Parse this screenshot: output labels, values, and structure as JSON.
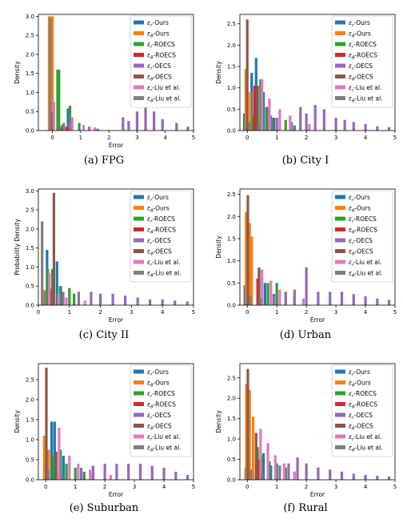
{
  "colors": [
    "#1f77b4",
    "#ff7f0e",
    "#2ca02c",
    "#d62728",
    "#9467bd",
    "#8c564b",
    "#e377c2",
    "#7f7f7f"
  ],
  "chart_data": [
    {
      "type": "bar",
      "caption": "(a) FPG",
      "xlabel": "Error",
      "ylabel": "Density",
      "xlim": [
        -0.5,
        5.0
      ],
      "ylim": [
        0,
        3.05
      ],
      "xticks": [
        0,
        1,
        2,
        3,
        4,
        5
      ],
      "yticks": [
        0.0,
        0.5,
        1.0,
        1.5,
        2.0,
        2.5,
        3.0
      ],
      "ytick_labels": [
        "0.0",
        "0.5",
        "1.0",
        "1.5",
        "2.0",
        "2.5",
        "3.0"
      ],
      "legend_position": "top-right",
      "series": [
        {
          "name_base": "ε",
          "name_sub": "r",
          "name_text": "-Ours",
          "x": [
            -0.1,
            0.55
          ],
          "values": [
            0.85,
            0.58
          ]
        },
        {
          "name_base": "ε",
          "name_sub": "θ",
          "name_text": "-Ours",
          "x": [
            -0.12,
            -0.05,
            0.0
          ],
          "values": [
            3.0,
            3.0,
            3.0
          ]
        },
        {
          "name_base": "ε",
          "name_sub": "r",
          "name_text": "-ROECS",
          "x": [
            0.18,
            0.23,
            0.62,
            0.95
          ],
          "values": [
            1.6,
            1.6,
            0.65,
            0.2
          ]
        },
        {
          "name_base": "ε",
          "name_sub": "θ",
          "name_text": "-ROECS",
          "x": [
            -0.05,
            0.5
          ],
          "values": [
            0.5,
            0.1
          ]
        },
        {
          "name_base": "ε",
          "name_sub": "r",
          "name_text": "-OECS",
          "x": [
            0.3,
            0.6,
            1.3,
            1.6,
            2.5,
            2.7,
            3.0,
            3.3,
            3.6,
            3.9,
            4.4,
            4.8
          ],
          "values": [
            0.1,
            0.2,
            0.1,
            0.05,
            0.35,
            0.25,
            0.5,
            0.6,
            0.5,
            0.3,
            0.2,
            0.1
          ]
        },
        {
          "name_base": "ε",
          "name_sub": "θ",
          "name_text": "-OECS",
          "x": [
            -0.03,
            0.35
          ],
          "values": [
            0.45,
            0.15
          ]
        },
        {
          "name_base": "ε",
          "name_sub": "r",
          "name_text": "-Liu et al.",
          "x": [
            0.05,
            0.7,
            1.1,
            1.5
          ],
          "values": [
            0.75,
            0.35,
            0.15,
            0.08
          ]
        },
        {
          "name_base": "ε",
          "name_sub": "θ",
          "name_text": "-Liu et al.",
          "x": [
            -0.08,
            0.4
          ],
          "values": [
            2.95,
            0.2
          ]
        }
      ]
    },
    {
      "type": "bar",
      "caption": "(b) City I",
      "xlabel": "",
      "ylabel": "Density",
      "xlim": [
        -0.25,
        5.0
      ],
      "ylim": [
        0,
        2.72
      ],
      "xticks": [
        0,
        1,
        2,
        3,
        4,
        5
      ],
      "yticks": [
        0.0,
        0.5,
        1.0,
        1.5,
        2.0,
        2.5
      ],
      "ytick_labels": [
        "0.0",
        "0.5",
        "1.0",
        "1.5",
        "2.0",
        "2.5"
      ],
      "legend_position": "top-right",
      "series": [
        {
          "name_base": "ε",
          "name_sub": "r",
          "name_text": "-Ours",
          "x": [
            -0.1,
            0.15,
            0.3,
            0.55,
            0.7,
            0.9
          ],
          "values": [
            0.4,
            1.35,
            1.7,
            0.9,
            0.55,
            0.3
          ]
        },
        {
          "name_base": "ε",
          "name_sub": "θ",
          "name_text": "-Ours",
          "x": [
            -0.05,
            0.1
          ],
          "values": [
            1.45,
            0.9
          ]
        },
        {
          "name_base": "ε",
          "name_sub": "r",
          "name_text": "-ROECS",
          "x": [
            0.2,
            0.45,
            0.65,
            0.85,
            1.3,
            1.6
          ],
          "values": [
            0.35,
            1.2,
            0.55,
            0.3,
            0.25,
            0.12
          ]
        },
        {
          "name_base": "ε",
          "name_sub": "θ",
          "name_text": "-ROECS",
          "x": [
            0.25,
            0.75
          ],
          "values": [
            1.05,
            0.2
          ]
        },
        {
          "name_base": "ε",
          "name_sub": "r",
          "name_text": "-OECS",
          "x": [
            0.8,
            1.0,
            1.5,
            1.8,
            2.0,
            2.3,
            2.6,
            3.0,
            3.3,
            3.6,
            4.0,
            4.4,
            4.8
          ],
          "values": [
            0.35,
            0.3,
            0.2,
            0.55,
            0.4,
            0.6,
            0.5,
            0.3,
            0.25,
            0.2,
            0.15,
            0.1,
            0.08
          ]
        },
        {
          "name_base": "ε",
          "name_sub": "θ",
          "name_text": "-OECS",
          "x": [
            0.0,
            0.35
          ],
          "values": [
            2.6,
            1.05
          ]
        },
        {
          "name_base": "ε",
          "name_sub": "r",
          "name_text": "-Liu et al.",
          "x": [
            0.5,
            0.75,
            1.1,
            1.45,
            2.1
          ],
          "values": [
            1.2,
            0.75,
            0.5,
            0.35,
            0.15
          ]
        },
        {
          "name_base": "ε",
          "name_sub": "θ",
          "name_text": "-Liu et al.",
          "x": [
            0.08,
            0.4
          ],
          "values": [
            0.2,
            0.12
          ]
        }
      ]
    },
    {
      "type": "bar",
      "caption": "(c) City II",
      "xlabel": "Error",
      "ylabel": "Probability Density",
      "xlim": [
        0.0,
        5.0
      ],
      "ylim": [
        0,
        3.05
      ],
      "xticks": [
        0,
        1,
        2,
        3,
        4,
        5
      ],
      "yticks": [
        0.0,
        0.5,
        1.0,
        1.5,
        2.0,
        2.5,
        3.0
      ],
      "ytick_labels": [
        "0.0",
        "0.5",
        "1.0",
        "1.5",
        "2.0",
        "2.5",
        "3.0"
      ],
      "legend_position": "top-right",
      "series": [
        {
          "name_base": "ε",
          "name_sub": "r",
          "name_text": "-Ours",
          "x": [
            0.28,
            0.6,
            0.72
          ],
          "values": [
            1.45,
            1.15,
            0.5
          ]
        },
        {
          "name_base": "ε",
          "name_sub": "θ",
          "name_text": "-Ours",
          "x": [
            0.2,
            0.4
          ],
          "values": [
            0.4,
            0.45
          ]
        },
        {
          "name_base": "ε",
          "name_sub": "r",
          "name_text": "-ROECS",
          "x": [
            0.3,
            0.45,
            0.7,
            1.0,
            1.15
          ],
          "values": [
            0.95,
            0.95,
            0.5,
            0.45,
            0.3
          ]
        },
        {
          "name_base": "ε",
          "name_sub": "θ",
          "name_text": "-ROECS",
          "x": [
            0.38
          ],
          "values": [
            0.4
          ]
        },
        {
          "name_base": "ε",
          "name_sub": "r",
          "name_text": "-OECS",
          "x": [
            0.8,
            1.3,
            1.7,
            2.0,
            2.4,
            2.8,
            3.2,
            3.6,
            4.0,
            4.4,
            4.8
          ],
          "values": [
            0.35,
            0.35,
            0.35,
            0.3,
            0.3,
            0.25,
            0.2,
            0.15,
            0.15,
            0.12,
            0.1
          ]
        },
        {
          "name_base": "ε",
          "name_sub": "θ",
          "name_text": "-OECS",
          "x": [
            0.5
          ],
          "values": [
            2.95
          ]
        },
        {
          "name_base": "ε",
          "name_sub": "r",
          "name_text": "-Liu et al.",
          "x": [
            0.35,
            0.65,
            0.9,
            1.5
          ],
          "values": [
            0.85,
            0.3,
            0.2,
            0.12
          ]
        },
        {
          "name_base": "ε",
          "name_sub": "θ",
          "name_text": "-Liu et al.",
          "x": [
            0.12,
            0.22
          ],
          "values": [
            2.2,
            0.35
          ]
        }
      ]
    },
    {
      "type": "bar",
      "caption": "(d) Urban",
      "xlabel": "Error",
      "ylabel": "Density",
      "xlim": [
        -0.25,
        5.0
      ],
      "ylim": [
        0,
        2.62
      ],
      "xticks": [
        0,
        1,
        2,
        3,
        4,
        5
      ],
      "yticks": [
        0.0,
        0.5,
        1.0,
        1.5,
        2.0,
        2.5
      ],
      "ytick_labels": [
        "0.0",
        "0.5",
        "1.0",
        "1.5",
        "2.0",
        "2.5"
      ],
      "legend_position": "top-right",
      "series": [
        {
          "name_base": "ε",
          "name_sub": "r",
          "name_text": "-Ours",
          "x": [
            -0.08,
            0.05,
            0.6,
            0.9
          ],
          "values": [
            0.45,
            0.2,
            0.5,
            0.25
          ]
        },
        {
          "name_base": "ε",
          "name_sub": "θ",
          "name_text": "-Ours",
          "x": [
            -0.04,
            0.08,
            0.15
          ],
          "values": [
            2.1,
            1.85,
            1.55
          ]
        },
        {
          "name_base": "ε",
          "name_sub": "r",
          "name_text": "-ROECS",
          "x": [
            0.4,
            0.7,
            1.0,
            1.3,
            1.6
          ],
          "values": [
            0.85,
            0.5,
            0.5,
            0.3,
            0.2
          ]
        },
        {
          "name_base": "ε",
          "name_sub": "θ",
          "name_text": "-ROECS",
          "x": [
            0.35
          ],
          "values": [
            0.6
          ]
        },
        {
          "name_base": "ε",
          "name_sub": "r",
          "name_text": "-OECS",
          "x": [
            0.9,
            1.3,
            1.6,
            2.0,
            2.4,
            2.8,
            3.2,
            3.6,
            4.0,
            4.4,
            4.8
          ],
          "values": [
            0.2,
            0.3,
            0.35,
            0.85,
            0.3,
            0.3,
            0.3,
            0.25,
            0.2,
            0.15,
            0.12
          ]
        },
        {
          "name_base": "ε",
          "name_sub": "θ",
          "name_text": "-OECS",
          "x": [
            0.02,
            0.4
          ],
          "values": [
            2.48,
            0.85
          ]
        },
        {
          "name_base": "ε",
          "name_sub": "r",
          "name_text": "-Liu et al.",
          "x": [
            0.5,
            0.8,
            1.1,
            1.9
          ],
          "values": [
            0.8,
            0.55,
            0.35,
            0.15
          ]
        },
        {
          "name_base": "ε",
          "name_sub": "θ",
          "name_text": "-Liu et al.",
          "x": [
            0.1,
            0.45
          ],
          "values": [
            0.2,
            0.15
          ]
        }
      ]
    },
    {
      "type": "bar",
      "caption": "(e) Suburban",
      "xlabel": "Error",
      "ylabel": "Density",
      "xlim": [
        -0.25,
        5.0
      ],
      "ylim": [
        0,
        2.9
      ],
      "xticks": [
        0,
        1,
        2,
        3,
        4,
        5
      ],
      "yticks": [
        0.0,
        0.5,
        1.0,
        1.5,
        2.0,
        2.5
      ],
      "ytick_labels": [
        "0.0",
        "0.5",
        "1.0",
        "1.5",
        "2.0",
        "2.5"
      ],
      "legend_position": "top-right",
      "series": [
        {
          "name_base": "ε",
          "name_sub": "r",
          "name_text": "-Ours",
          "x": [
            0.2,
            0.3,
            0.6
          ],
          "values": [
            1.45,
            1.45,
            0.6
          ]
        },
        {
          "name_base": "ε",
          "name_sub": "θ",
          "name_text": "-Ours",
          "x": [
            -0.05,
            0.1
          ],
          "values": [
            1.1,
            0.75
          ]
        },
        {
          "name_base": "ε",
          "name_sub": "r",
          "name_text": "-ROECS",
          "x": [
            0.25,
            0.5,
            0.7,
            1.0,
            1.3,
            1.6
          ],
          "values": [
            0.6,
            0.75,
            0.4,
            0.3,
            0.2,
            0.15
          ]
        },
        {
          "name_base": "ε",
          "name_sub": "θ",
          "name_text": "-ROECS",
          "x": [
            0.45
          ],
          "values": [
            0.25
          ]
        },
        {
          "name_base": "ε",
          "name_sub": "r",
          "name_text": "-OECS",
          "x": [
            1.2,
            1.6,
            2.0,
            2.4,
            2.8,
            3.2,
            3.6,
            4.0,
            4.4,
            4.8
          ],
          "values": [
            0.3,
            0.35,
            0.4,
            0.4,
            0.4,
            0.4,
            0.35,
            0.3,
            0.2,
            0.12
          ]
        },
        {
          "name_base": "ε",
          "name_sub": "θ",
          "name_text": "-OECS",
          "x": [
            0.02,
            0.35
          ],
          "values": [
            2.8,
            0.7
          ]
        },
        {
          "name_base": "ε",
          "name_sub": "r",
          "name_text": "-Liu et al.",
          "x": [
            0.45,
            0.8,
            1.1,
            1.5,
            2.2
          ],
          "values": [
            1.3,
            0.6,
            0.4,
            0.25,
            0.12
          ]
        },
        {
          "name_base": "ε",
          "name_sub": "θ",
          "name_text": "-Liu et al.",
          "x": [
            0.08,
            0.55
          ],
          "values": [
            0.25,
            0.15
          ]
        }
      ]
    },
    {
      "type": "bar",
      "caption": "(f) Rural",
      "xlabel": "Error",
      "ylabel": "Density",
      "xlim": [
        -0.25,
        5.0
      ],
      "ylim": [
        0,
        2.85
      ],
      "xticks": [
        0,
        1,
        2,
        3,
        4,
        5
      ],
      "yticks": [
        0.0,
        0.5,
        1.0,
        1.5,
        2.0,
        2.5
      ],
      "ytick_labels": [
        "0.0",
        "0.5",
        "1.0",
        "1.5",
        "2.0",
        "2.5"
      ],
      "legend_position": "top-right",
      "series": [
        {
          "name_base": "ε",
          "name_sub": "r",
          "name_text": "-Ours",
          "x": [
            -0.05,
            0.55,
            0.8
          ],
          "values": [
            0.3,
            0.65,
            0.35
          ]
        },
        {
          "name_base": "ε",
          "name_sub": "θ",
          "name_text": "-Ours",
          "x": [
            -0.03,
            0.08,
            0.2
          ],
          "values": [
            2.35,
            2.2,
            1.55
          ]
        },
        {
          "name_base": "ε",
          "name_sub": "r",
          "name_text": "-ROECS",
          "x": [
            0.35,
            0.5,
            0.75,
            1.0,
            1.3,
            1.6
          ],
          "values": [
            0.8,
            0.6,
            0.45,
            0.4,
            0.3,
            0.2
          ]
        },
        {
          "name_base": "ε",
          "name_sub": "θ",
          "name_text": "-ROECS",
          "x": [
            0.4
          ],
          "values": [
            0.5
          ]
        },
        {
          "name_base": "ε",
          "name_sub": "r",
          "name_text": "-OECS",
          "x": [
            1.1,
            1.4,
            1.7,
            2.0,
            2.4,
            2.8,
            3.2,
            3.6,
            4.0,
            4.4,
            4.8
          ],
          "values": [
            0.35,
            0.4,
            0.55,
            0.4,
            0.3,
            0.25,
            0.2,
            0.15,
            0.12,
            0.1,
            0.08
          ]
        },
        {
          "name_base": "ε",
          "name_sub": "θ",
          "name_text": "-OECS",
          "x": [
            0.02,
            0.3
          ],
          "values": [
            2.72,
            1.15
          ]
        },
        {
          "name_base": "ε",
          "name_sub": "r",
          "name_text": "-Liu et al.",
          "x": [
            0.45,
            0.7,
            0.95,
            1.25,
            1.6
          ],
          "values": [
            1.25,
            0.9,
            0.6,
            0.4,
            0.2
          ]
        },
        {
          "name_base": "ε",
          "name_sub": "θ",
          "name_text": "-Liu et al.",
          "x": [
            0.12,
            0.5
          ],
          "values": [
            0.25,
            0.15
          ]
        }
      ]
    }
  ]
}
